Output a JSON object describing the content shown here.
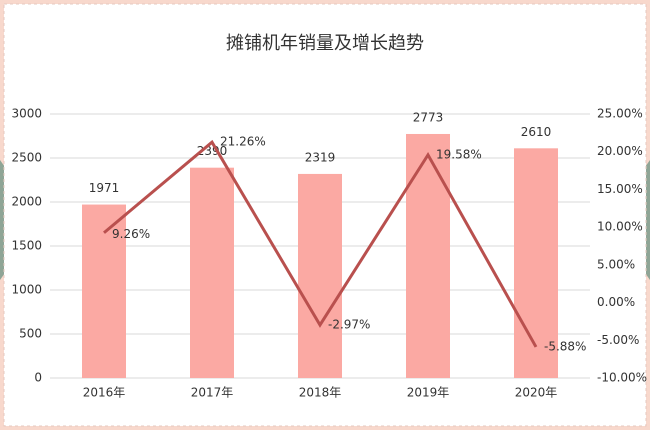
{
  "chart_data": {
    "type": "bar",
    "title": "摊铺机年销量及增长趋势",
    "categories": [
      "2016年",
      "2017年",
      "2018年",
      "2019年",
      "2020年"
    ],
    "series": [
      {
        "type": "bar",
        "color": "#fba9a3",
        "values": [
          1971,
          2390,
          2319,
          2773,
          2610
        ]
      },
      {
        "type": "line",
        "axis": "y2",
        "color": "#b9504e",
        "values": [
          9.26,
          21.26,
          -2.97,
          19.58,
          -5.88
        ],
        "value_labels": [
          "9.26%",
          "21.26%",
          "-2.97%",
          "19.58%",
          "-5.88%"
        ]
      }
    ],
    "ylim": [
      0,
      3000
    ],
    "yticks": [
      0,
      500,
      1000,
      1500,
      2000,
      2500,
      3000
    ],
    "y2lim": [
      -10,
      25
    ],
    "y2ticks": [
      {
        "value": -10,
        "label": "-10.00%"
      },
      {
        "value": -5,
        "label": "-5.00%"
      },
      {
        "value": 0,
        "label": "0.00%"
      },
      {
        "value": 5,
        "label": "5.00%"
      },
      {
        "value": 10,
        "label": "10.00%"
      },
      {
        "value": 15,
        "label": "15.00%"
      },
      {
        "value": 20,
        "label": "20.00%"
      },
      {
        "value": 25,
        "label": "25.00%"
      }
    ],
    "grid": true
  }
}
